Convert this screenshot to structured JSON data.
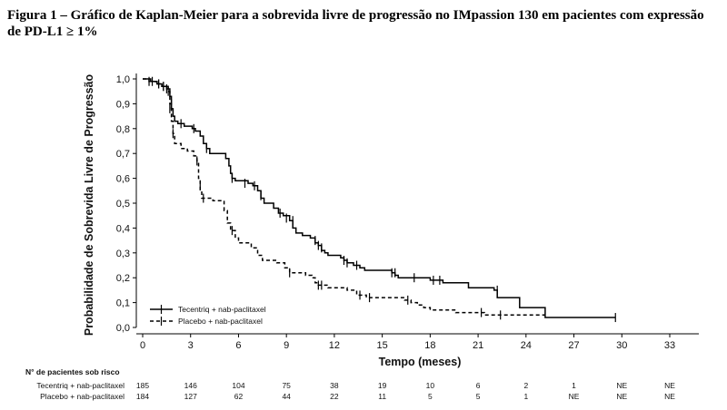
{
  "figure": {
    "caption": "Figura 1 – Gráfico de Kaplan-Meier para a sobrevida livre de progressão no IMpassion 130 em pacientes com expressão de PD-L1 ≥ 1%"
  },
  "chart_data": {
    "type": "line",
    "title": "",
    "xlabel": "Tempo (meses)",
    "ylabel": "Probabilidade de Sobrevida Livre de Progressão",
    "xlim": [
      0,
      33
    ],
    "ylim": [
      0,
      1.0
    ],
    "x_ticks": [
      "0",
      "3",
      "6",
      "9",
      "12",
      "15",
      "18",
      "21",
      "24",
      "27",
      "30",
      "33"
    ],
    "y_ticks": [
      "0,0",
      "0,1",
      "0,2",
      "0,3",
      "0,4",
      "0,5",
      "0,6",
      "0,7",
      "0,8",
      "0,9",
      "1,0"
    ],
    "legend_position": "bottom-left",
    "series": [
      {
        "name": "Tecentriq + nab-paclitaxel",
        "style": "solid",
        "color": "#000000",
        "steps": [
          [
            0,
            1.0
          ],
          [
            0.4,
            0.99
          ],
          [
            0.9,
            0.98
          ],
          [
            1.2,
            0.97
          ],
          [
            1.5,
            0.96
          ],
          [
            1.7,
            0.93
          ],
          [
            1.8,
            0.88
          ],
          [
            1.9,
            0.85
          ],
          [
            2.0,
            0.83
          ],
          [
            2.2,
            0.82
          ],
          [
            2.6,
            0.81
          ],
          [
            3.1,
            0.8
          ],
          [
            3.3,
            0.79
          ],
          [
            3.6,
            0.77
          ],
          [
            3.8,
            0.74
          ],
          [
            4.0,
            0.72
          ],
          [
            4.2,
            0.7
          ],
          [
            5.2,
            0.68
          ],
          [
            5.4,
            0.65
          ],
          [
            5.5,
            0.62
          ],
          [
            5.6,
            0.6
          ],
          [
            5.8,
            0.59
          ],
          [
            6.6,
            0.58
          ],
          [
            6.9,
            0.57
          ],
          [
            7.2,
            0.55
          ],
          [
            7.4,
            0.52
          ],
          [
            7.6,
            0.5
          ],
          [
            8.2,
            0.48
          ],
          [
            8.5,
            0.46
          ],
          [
            8.8,
            0.45
          ],
          [
            9.2,
            0.43
          ],
          [
            9.4,
            0.4
          ],
          [
            9.6,
            0.38
          ],
          [
            10.0,
            0.37
          ],
          [
            10.5,
            0.36
          ],
          [
            10.8,
            0.34
          ],
          [
            11.0,
            0.33
          ],
          [
            11.2,
            0.31
          ],
          [
            11.4,
            0.3
          ],
          [
            11.6,
            0.29
          ],
          [
            12.4,
            0.28
          ],
          [
            12.6,
            0.27
          ],
          [
            12.8,
            0.26
          ],
          [
            13.2,
            0.25
          ],
          [
            13.6,
            0.24
          ],
          [
            13.9,
            0.23
          ],
          [
            15.6,
            0.22
          ],
          [
            15.8,
            0.21
          ],
          [
            16.0,
            0.2
          ],
          [
            18.0,
            0.19
          ],
          [
            18.8,
            0.18
          ],
          [
            20.4,
            0.16
          ],
          [
            22.0,
            0.15
          ],
          [
            22.2,
            0.12
          ],
          [
            23.6,
            0.08
          ],
          [
            25.2,
            0.04
          ],
          [
            29.6,
            0.04
          ]
        ],
        "censors": [
          [
            0.6,
            0.99
          ],
          [
            1.0,
            0.98
          ],
          [
            1.3,
            0.97
          ],
          [
            1.5,
            0.96
          ],
          [
            1.6,
            0.95
          ],
          [
            1.8,
            0.9
          ],
          [
            2.4,
            0.82
          ],
          [
            3.2,
            0.8
          ],
          [
            4.0,
            0.72
          ],
          [
            5.6,
            0.6
          ],
          [
            6.4,
            0.58
          ],
          [
            7.0,
            0.57
          ],
          [
            7.4,
            0.53
          ],
          [
            8.6,
            0.46
          ],
          [
            9.0,
            0.44
          ],
          [
            9.4,
            0.43
          ],
          [
            10.8,
            0.35
          ],
          [
            11.0,
            0.33
          ],
          [
            11.2,
            0.32
          ],
          [
            12.6,
            0.27
          ],
          [
            12.8,
            0.26
          ],
          [
            13.4,
            0.25
          ],
          [
            15.6,
            0.22
          ],
          [
            15.8,
            0.22
          ],
          [
            17.0,
            0.2
          ],
          [
            18.2,
            0.19
          ],
          [
            18.6,
            0.19
          ],
          [
            22.2,
            0.15
          ],
          [
            29.6,
            0.04
          ]
        ]
      },
      {
        "name": "Placebo + nab-paclitaxel",
        "style": "dashed",
        "color": "#000000",
        "steps": [
          [
            0,
            1.0
          ],
          [
            0.5,
            0.99
          ],
          [
            0.8,
            0.98
          ],
          [
            1.2,
            0.97
          ],
          [
            1.6,
            0.95
          ],
          [
            1.7,
            0.9
          ],
          [
            1.8,
            0.83
          ],
          [
            1.9,
            0.78
          ],
          [
            2.0,
            0.74
          ],
          [
            2.4,
            0.72
          ],
          [
            2.8,
            0.71
          ],
          [
            3.2,
            0.69
          ],
          [
            3.4,
            0.67
          ],
          [
            3.5,
            0.6
          ],
          [
            3.6,
            0.55
          ],
          [
            3.7,
            0.52
          ],
          [
            4.4,
            0.51
          ],
          [
            5.1,
            0.47
          ],
          [
            5.3,
            0.42
          ],
          [
            5.5,
            0.39
          ],
          [
            5.8,
            0.36
          ],
          [
            6.0,
            0.34
          ],
          [
            6.8,
            0.32
          ],
          [
            7.2,
            0.29
          ],
          [
            7.5,
            0.27
          ],
          [
            8.4,
            0.26
          ],
          [
            8.9,
            0.24
          ],
          [
            9.2,
            0.22
          ],
          [
            10.2,
            0.21
          ],
          [
            10.6,
            0.2
          ],
          [
            10.8,
            0.18
          ],
          [
            11.0,
            0.17
          ],
          [
            11.6,
            0.16
          ],
          [
            12.8,
            0.15
          ],
          [
            13.4,
            0.13
          ],
          [
            14.0,
            0.12
          ],
          [
            16.4,
            0.11
          ],
          [
            16.8,
            0.1
          ],
          [
            17.2,
            0.09
          ],
          [
            17.6,
            0.08
          ],
          [
            18.0,
            0.07
          ],
          [
            19.6,
            0.06
          ],
          [
            20.6,
            0.06
          ],
          [
            21.4,
            0.05
          ],
          [
            25.2,
            0.05
          ]
        ],
        "censors": [
          [
            0.4,
            0.99
          ],
          [
            1.0,
            0.98
          ],
          [
            1.3,
            0.97
          ],
          [
            1.7,
            0.88
          ],
          [
            1.9,
            0.78
          ],
          [
            3.4,
            0.67
          ],
          [
            3.6,
            0.57
          ],
          [
            3.8,
            0.52
          ],
          [
            5.6,
            0.39
          ],
          [
            9.2,
            0.22
          ],
          [
            11.0,
            0.17
          ],
          [
            11.2,
            0.17
          ],
          [
            13.6,
            0.13
          ],
          [
            14.2,
            0.12
          ],
          [
            16.6,
            0.11
          ],
          [
            21.2,
            0.06
          ],
          [
            22.4,
            0.05
          ]
        ]
      }
    ],
    "risk_table": {
      "title": "N° de pacientes sob risco",
      "rows": [
        {
          "label": "Tecentriq + nab-paclitaxel",
          "values": [
            "185",
            "146",
            "104",
            "75",
            "38",
            "19",
            "10",
            "6",
            "2",
            "1",
            "NE",
            "NE"
          ]
        },
        {
          "label": "Placebo + nab-paclitaxel",
          "values": [
            "184",
            "127",
            "62",
            "44",
            "22",
            "11",
            "5",
            "5",
            "1",
            "NE",
            "NE",
            "NE"
          ]
        }
      ]
    }
  }
}
